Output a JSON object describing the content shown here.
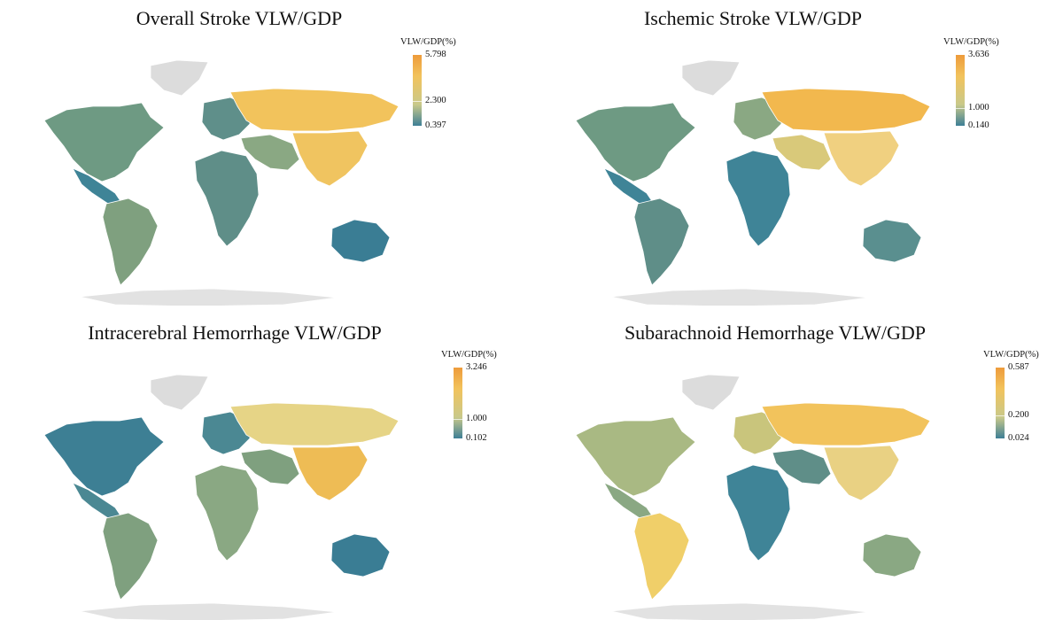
{
  "maps": [
    {
      "title": "Overall Stroke VLW/GDP",
      "legend": {
        "title": "VLW/GDP(%)",
        "max": "5.798",
        "mid": "2.300",
        "min": "0.397",
        "mid_fraction": 0.35
      },
      "region_colors": {
        "north_america": "#6e9a83",
        "greenland": "#dcdcdc",
        "central_america": "#3f8497",
        "south_america": "#7fa07f",
        "europe_west": "#5f8f8a",
        "russia": "#f2c35c",
        "asia_east": "#f0c460",
        "middle_east": "#8aa883",
        "africa": "#5f8e88",
        "australia": "#3a7d94",
        "antarctica": "#e2e2e2"
      }
    },
    {
      "title": "Ischemic Stroke VLW/GDP",
      "legend": {
        "title": "VLW/GDP(%)",
        "max": "3.636",
        "mid": "1.000",
        "min": "0.140",
        "mid_fraction": 0.25
      },
      "region_colors": {
        "north_america": "#6e9a83",
        "greenland": "#dcdcdc",
        "central_america": "#3f8497",
        "south_america": "#5f8e88",
        "europe_west": "#8aa883",
        "russia": "#f2b84e",
        "asia_east": "#f0d080",
        "middle_east": "#d9c97a",
        "africa": "#3f8497",
        "australia": "#5a8f8f",
        "antarctica": "#e2e2e2"
      }
    },
    {
      "title": "Intracerebral Hemorrhage VLW/GDP",
      "legend": {
        "title": "VLW/GDP(%)",
        "max": "3.246",
        "mid": "1.000",
        "min": "0.102",
        "mid_fraction": 0.28
      },
      "region_colors": {
        "north_america": "#3d7f94",
        "greenland": "#dcdcdc",
        "central_america": "#4b8893",
        "south_america": "#7fa07f",
        "europe_west": "#4b8893",
        "russia": "#e6d486",
        "asia_east": "#eebc55",
        "middle_east": "#7fa07f",
        "africa": "#8aa883",
        "australia": "#3a7d94",
        "antarctica": "#e2e2e2"
      }
    },
    {
      "title": "Subarachnoid Hemorrhage VLW/GDP",
      "legend": {
        "title": "VLW/GDP(%)",
        "max": "0.587",
        "mid": "0.200",
        "min": "0.024",
        "mid_fraction": 0.32
      },
      "region_colors": {
        "north_america": "#a9b983",
        "greenland": "#dcdcdc",
        "central_america": "#8aa883",
        "south_america": "#f0cf69",
        "europe_west": "#c9c57c",
        "russia": "#f2c35c",
        "asia_east": "#e9d183",
        "middle_east": "#5f8e88",
        "africa": "#3f8497",
        "australia": "#8aa883",
        "antarctica": "#e2e2e2"
      }
    }
  ],
  "legend_gradient": [
    "#3e7f96",
    "#c9c98a",
    "#f2c35c",
    "#ee9b3b"
  ]
}
